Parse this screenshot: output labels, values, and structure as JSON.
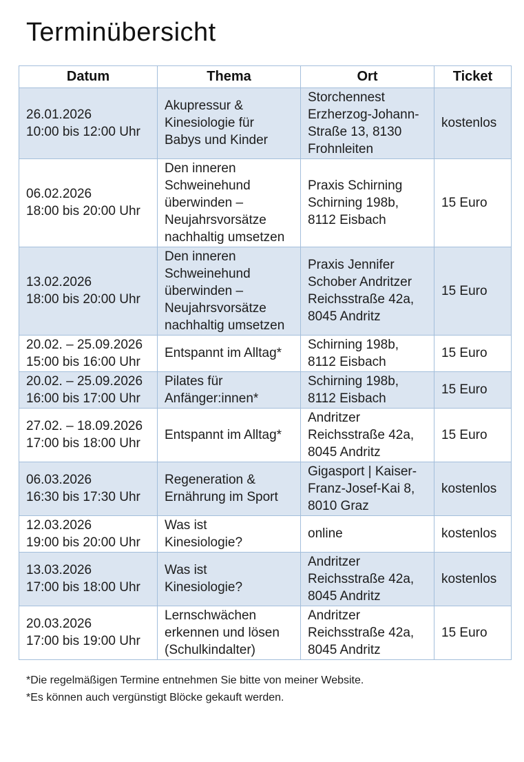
{
  "page": {
    "title": "Terminübersicht",
    "footnotes": [
      "*Die regelmäßigen Termine entnehmen Sie bitte von meiner Website.",
      "*Es können auch vergünstigt Blöcke gekauft werden."
    ]
  },
  "colors": {
    "row_shaded": "#dbe5f1",
    "table_border": "#a3bedb",
    "text": "#1c1c1c"
  },
  "table": {
    "columns": [
      "Datum",
      "Thema",
      "Ort",
      "Ticket"
    ],
    "column_keys": [
      "datum",
      "thema",
      "ort",
      "ticket"
    ],
    "rows": [
      {
        "datum": "26.01.2026\n10:00 bis 12:00 Uhr",
        "thema": "Akupressur &\nKinesiologie für\nBabys und Kinder",
        "ort": "Storchennest\nErzherzog-Johann-\nStraße 13, 8130\nFrohnleiten",
        "ticket": "kostenlos"
      },
      {
        "datum": "06.02.2026\n18:00 bis 20:00 Uhr",
        "thema": "Den inneren\nSchweinehund\nüberwinden –\nNeujahrsvorsätze\nnachhaltig umsetzen",
        "ort": "Praxis Schirning\nSchirning 198b,\n8112 Eisbach",
        "ticket": "15 Euro"
      },
      {
        "datum": "13.02.2026\n18:00 bis 20:00 Uhr",
        "thema": "Den inneren\nSchweinehund\nüberwinden –\nNeujahrsvorsätze\nnachhaltig umsetzen",
        "ort": "Praxis Jennifer\nSchober Andritzer\nReichsstraße 42a,\n8045 Andritz",
        "ticket": "15 Euro"
      },
      {
        "datum": "20.02. – 25.09.2026\n15:00 bis 16:00 Uhr",
        "thema": "Entspannt im Alltag*",
        "ort": "Schirning 198b,\n8112 Eisbach",
        "ticket": "15 Euro"
      },
      {
        "datum": "20.02. – 25.09.2026\n16:00 bis 17:00 Uhr",
        "thema": "Pilates für\nAnfänger:innen*",
        "ort": "Schirning 198b,\n8112 Eisbach",
        "ticket": "15 Euro"
      },
      {
        "datum": "27.02. – 18.09.2026\n17:00 bis 18:00 Uhr",
        "thema": "Entspannt im Alltag*",
        "ort": "Andritzer\nReichsstraße 42a,\n8045 Andritz",
        "ticket": "15 Euro"
      },
      {
        "datum": "06.03.2026\n16:30 bis 17:30 Uhr",
        "thema": "Regeneration &\nErnährung im Sport",
        "ort": "Gigasport | Kaiser-\nFranz-Josef-Kai 8,\n8010 Graz",
        "ticket": "kostenlos"
      },
      {
        "datum": "12.03.2026\n19:00 bis 20:00 Uhr",
        "thema": "Was ist\nKinesiologie?",
        "ort": "online",
        "ticket": "kostenlos"
      },
      {
        "datum": "13.03.2026\n17:00 bis 18:00 Uhr",
        "thema": "Was ist\nKinesiologie?",
        "ort": "Andritzer\nReichsstraße 42a,\n8045 Andritz",
        "ticket": "kostenlos"
      },
      {
        "datum": "20.03.2026\n17:00 bis 19:00 Uhr",
        "thema": "Lernschwächen\nerkennen und lösen\n(Schulkindalter)",
        "ort": "Andritzer\nReichsstraße 42a,\n8045 Andritz",
        "ticket": "15 Euro"
      }
    ]
  }
}
